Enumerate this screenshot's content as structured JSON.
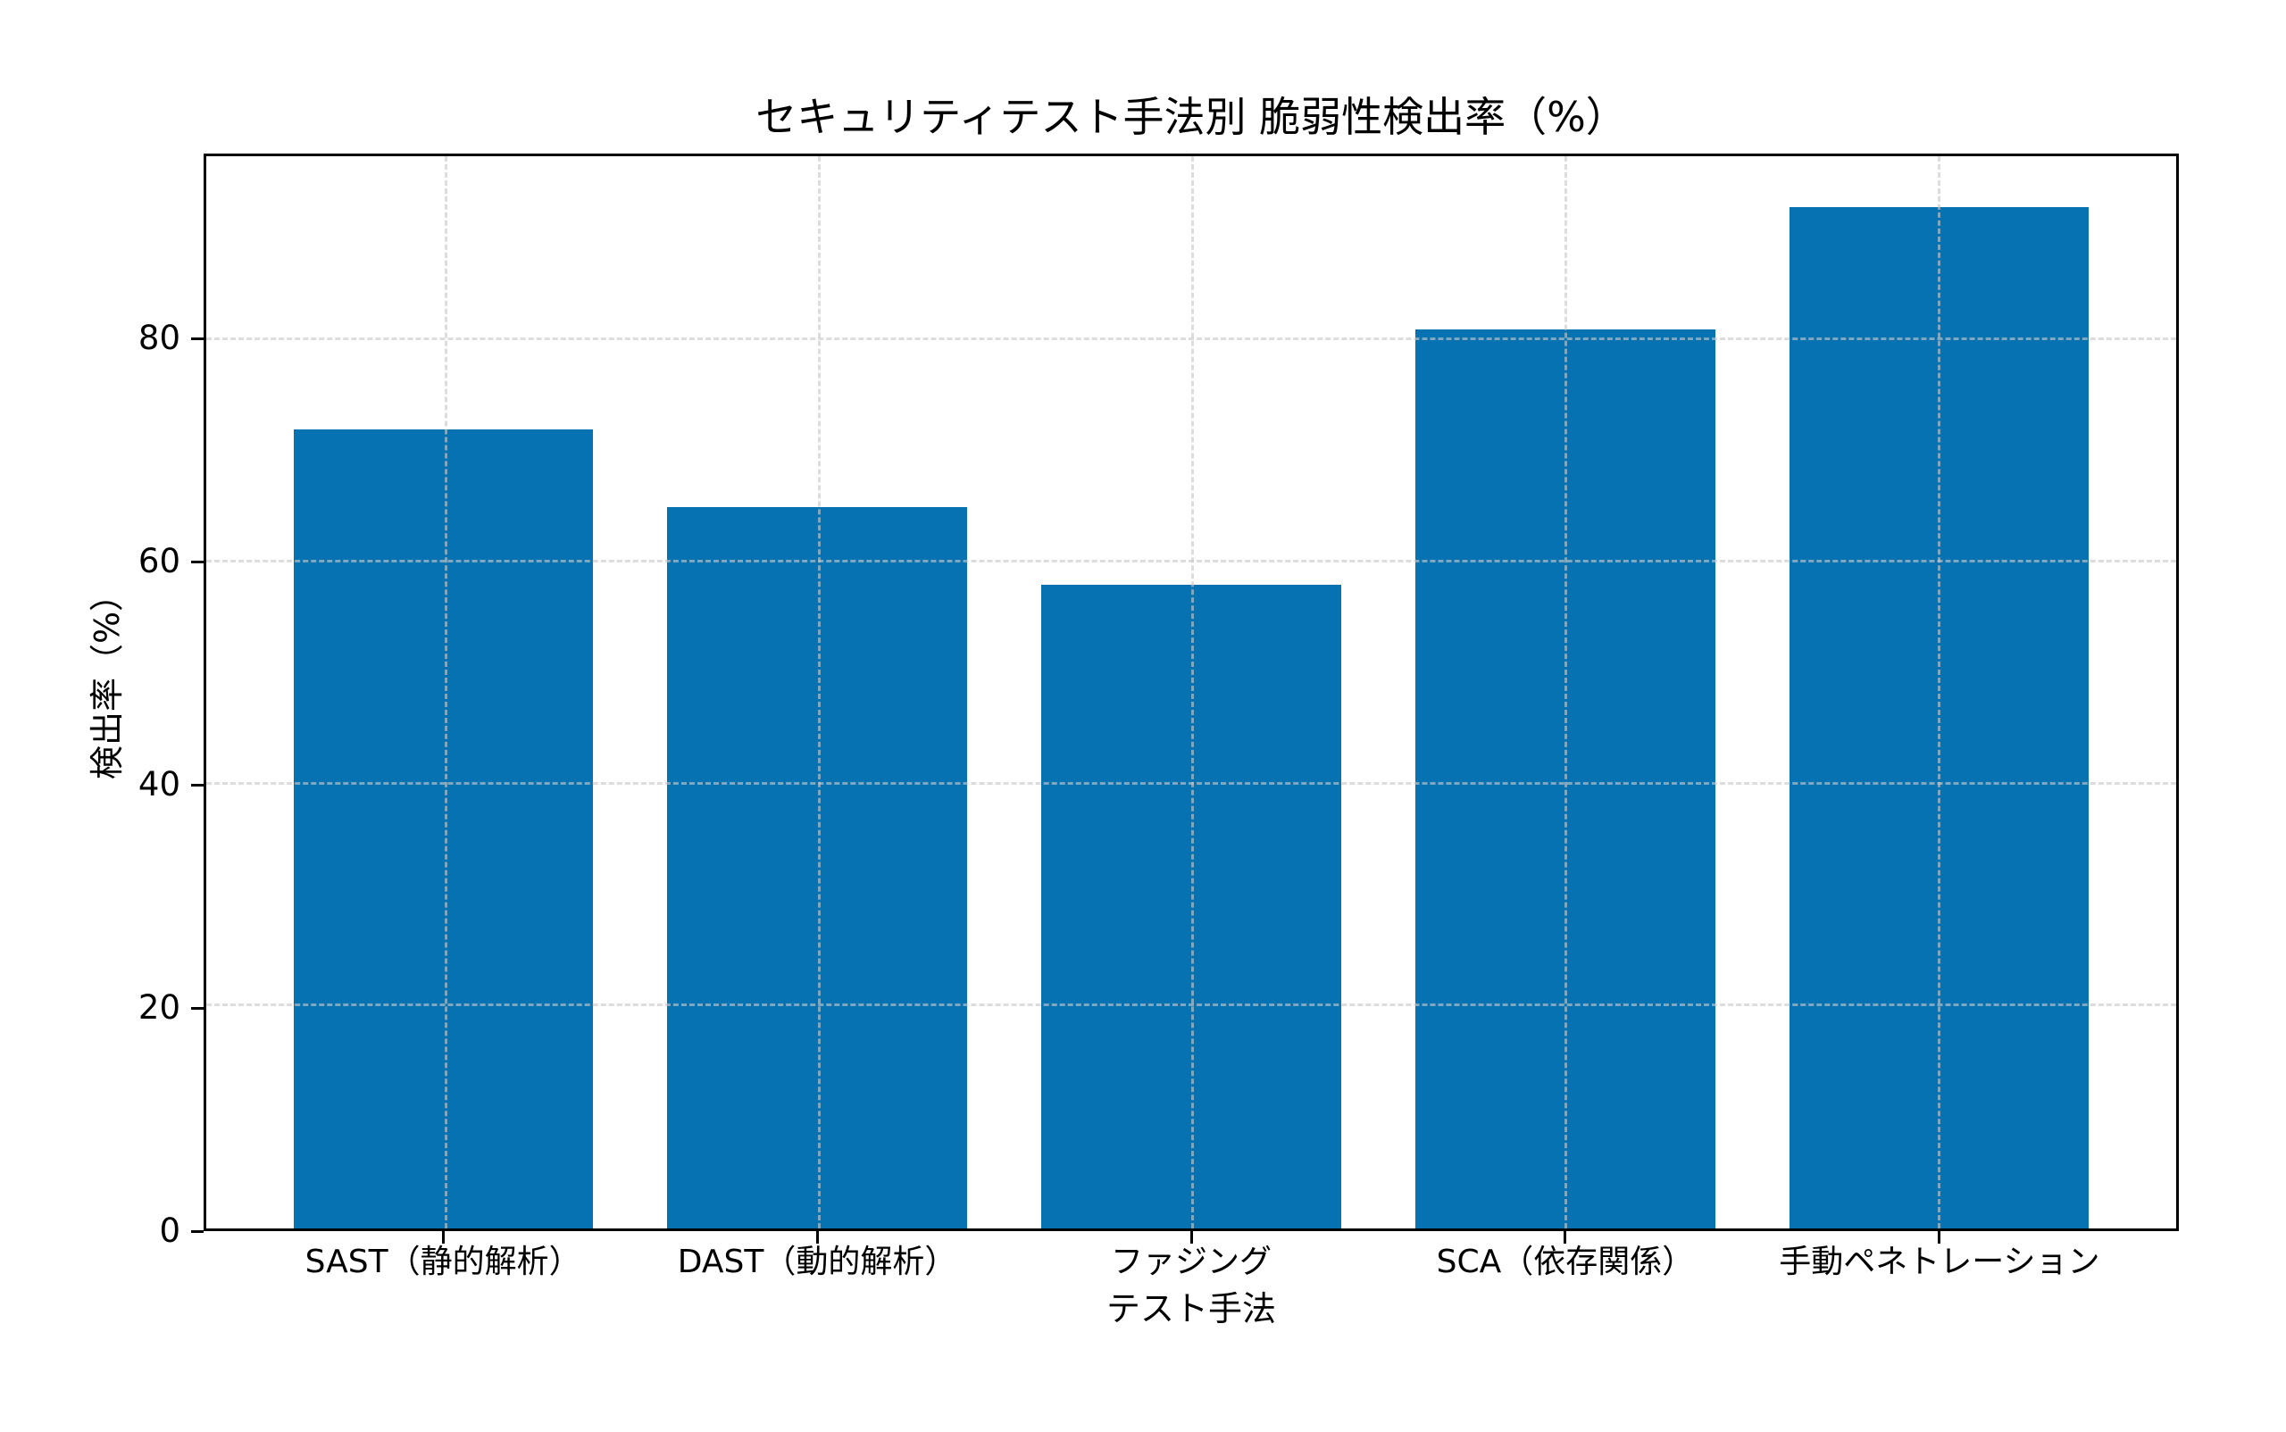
{
  "chart_data": {
    "type": "bar",
    "title": "セキュリティテスト手法別 脆弱性検出率（%）",
    "xlabel": "テスト手法",
    "ylabel": "検出率（%）",
    "categories": [
      "SAST（静的解析）",
      "DAST（動的解析）",
      "ファジング",
      "SCA（依存関係）",
      "手動ペネトレーション"
    ],
    "values": [
      72,
      65,
      58,
      81,
      92
    ],
    "yticks": [
      0,
      20,
      40,
      60,
      80
    ],
    "ylim": [
      0,
      96.6
    ],
    "xlim": [
      -0.64,
      4.64
    ],
    "bar_width_fraction": 0.8,
    "bar_color": "#0772b2",
    "grid": true,
    "grid_color": "#c8c8c8",
    "background_color": "#ffffff",
    "legend": "none"
  }
}
